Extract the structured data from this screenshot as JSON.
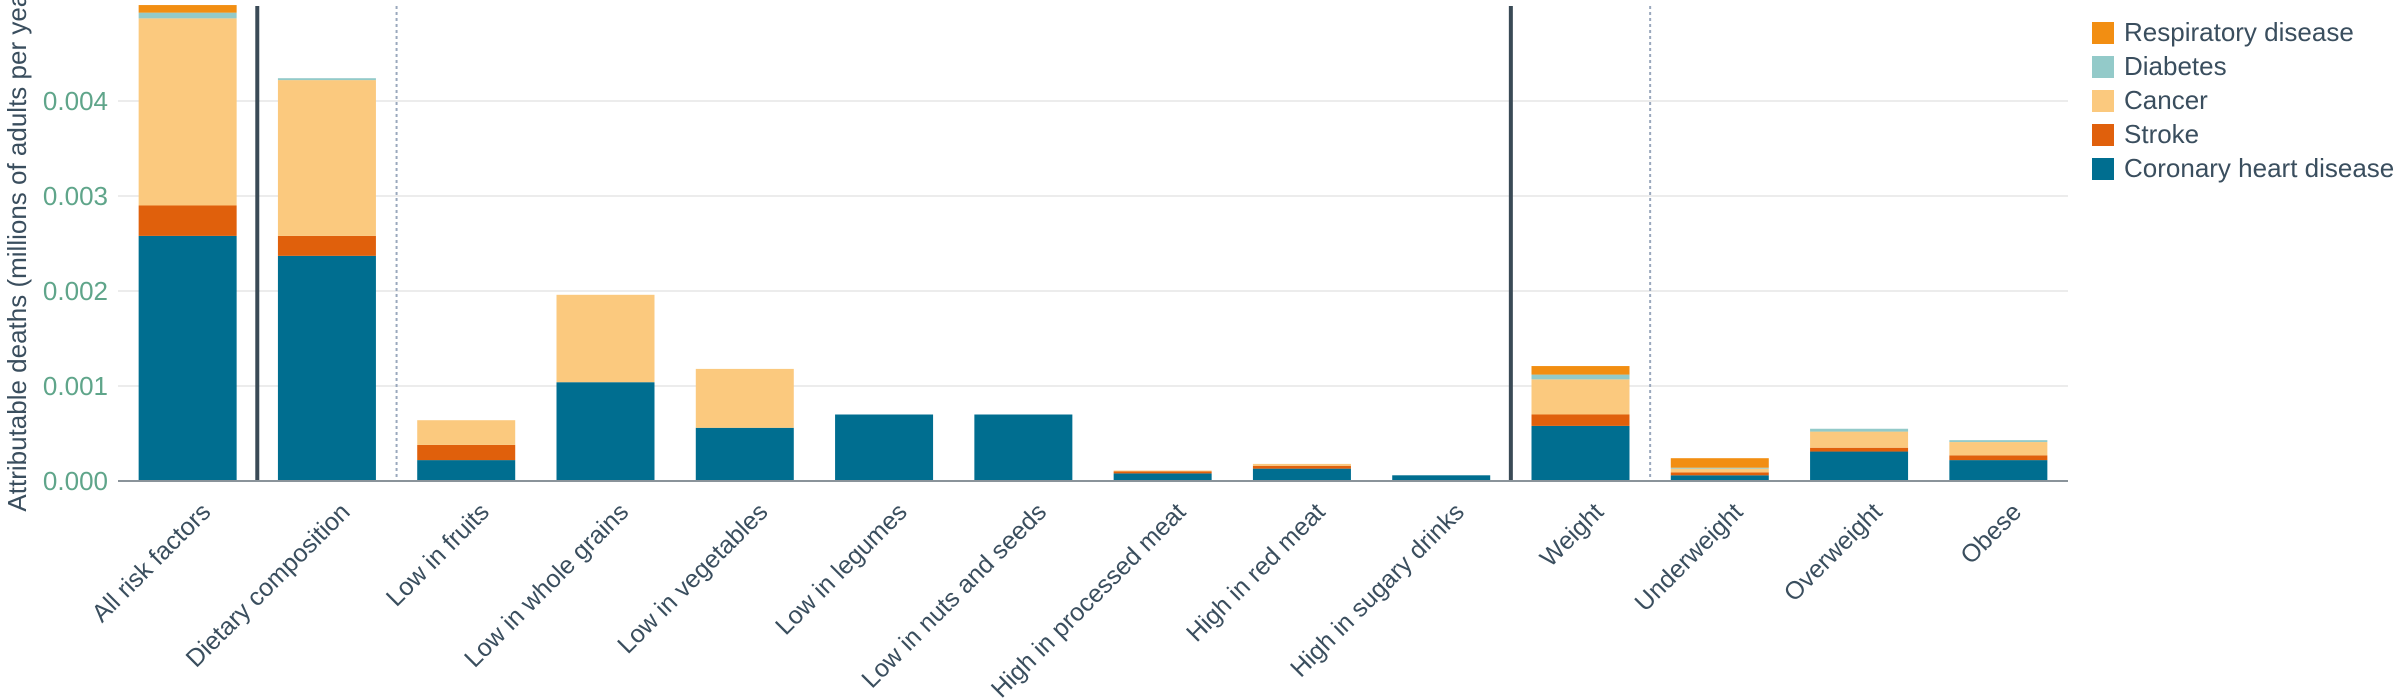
{
  "chart_data": {
    "type": "bar",
    "stacked": true,
    "ylabel": "Attributable deaths (millions of adults per year)",
    "ylim": [
      0,
      0.005
    ],
    "yticks": [
      "0.000",
      "0.001",
      "0.002",
      "0.003",
      "0.004"
    ],
    "ytick_values": [
      0,
      0.001,
      0.002,
      0.003,
      0.004
    ],
    "grid": true,
    "legend_position": "top-right",
    "categories": [
      "All risk factors",
      "Dietary composition",
      "Low in fruits",
      "Low in whole grains",
      "Low in vegetables",
      "Low in legumes",
      "Low in nuts and seeds",
      "High in processed meat",
      "High in red meat",
      "High in sugary drinks",
      "Weight",
      "Underweight",
      "Overweight",
      "Obese"
    ],
    "series": [
      {
        "name": "Coronary heart disease",
        "color": "#006e90",
        "values": [
          0.00258,
          0.00237,
          0.00022,
          0.00104,
          0.00056,
          0.0007,
          0.0007,
          8e-05,
          0.00013,
          6e-05,
          0.00058,
          6e-05,
          0.00031,
          0.00022
        ]
      },
      {
        "name": "Stroke",
        "color": "#e0600c",
        "values": [
          0.00032,
          0.00021,
          0.00016,
          0.0,
          0.0,
          0.0,
          0.0,
          2e-05,
          3e-05,
          0.0,
          0.00012,
          3e-05,
          4e-05,
          5e-05
        ]
      },
      {
        "name": "Cancer",
        "color": "#fbc97e",
        "values": [
          0.00197,
          0.00164,
          0.00026,
          0.00092,
          0.00062,
          0.0,
          0.0,
          1e-05,
          2e-05,
          0.0,
          0.00037,
          4e-05,
          0.00017,
          0.00014
        ]
      },
      {
        "name": "Diabetes",
        "color": "#93cac9",
        "values": [
          6e-05,
          2e-05,
          0.0,
          0.0,
          0.0,
          0.0,
          0.0,
          0.0,
          0.0,
          0.0,
          5e-05,
          1e-05,
          3e-05,
          2e-05
        ]
      },
      {
        "name": "Respiratory disease",
        "color": "#f28e12",
        "values": [
          8e-05,
          0.0,
          0.0,
          0.0,
          0.0,
          0.0,
          0.0,
          0.0,
          0.0,
          0.0,
          9e-05,
          0.0001,
          0.0,
          0.0
        ]
      }
    ],
    "legend_order": [
      "Respiratory disease",
      "Diabetes",
      "Cancer",
      "Stroke",
      "Coronary heart disease"
    ],
    "solid_separator_after": [
      "All risk factors",
      "High in sugary drinks"
    ],
    "dotted_separator_after": [
      "Dietary composition",
      "Weight"
    ]
  },
  "colors": {
    "axis": "#8a939a",
    "grid": "#e6e6e6",
    "tick_text": "#5fa58a",
    "label_text": "#3a4e5e",
    "separator_solid": "#3a4a56",
    "separator_dotted": "#9aa8bd"
  }
}
